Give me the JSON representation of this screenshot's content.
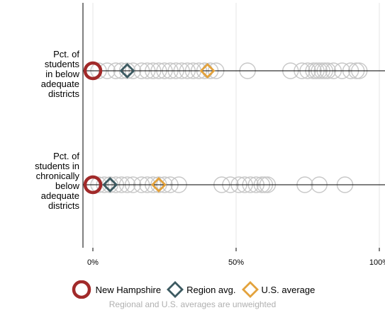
{
  "chart_data": {
    "type": "scatter",
    "title": "",
    "xlabel": "",
    "ylabel": "",
    "xlim": [
      0,
      100
    ],
    "x_ticks": [
      "0%",
      "50%",
      "100%"
    ],
    "x_tick_values": [
      0,
      50,
      100
    ],
    "grid": "vertical",
    "rows": [
      {
        "label_lines": [
          "Pct. of",
          "students",
          "in below",
          "adequate",
          "districts"
        ],
        "states": [
          2,
          5,
          8,
          10,
          12,
          14,
          17,
          19,
          21,
          23,
          25,
          27,
          29,
          31,
          33,
          35,
          37,
          39,
          41,
          43,
          54,
          69,
          73,
          75,
          77,
          78,
          79,
          80,
          81,
          82,
          84,
          87,
          90,
          92,
          93
        ],
        "highlight": 0,
        "region_avg": 12,
        "us_avg": 40
      },
      {
        "label_lines": [
          "Pct. of",
          "students in",
          "chronically",
          "below",
          "adequate",
          "districts"
        ],
        "states": [
          2,
          4,
          6,
          8,
          10,
          12,
          14,
          17,
          19,
          21,
          23,
          25,
          27,
          30,
          45,
          48,
          51,
          53,
          55,
          57,
          59,
          60,
          61,
          74,
          79,
          88
        ],
        "highlight": 0,
        "region_avg": 6,
        "us_avg": 23
      }
    ],
    "legend": [
      {
        "name": "New Hampshire",
        "marker": "circle",
        "color": "#a12a2a"
      },
      {
        "name": "Region avg.",
        "marker": "diamond",
        "color": "#3c5a61"
      },
      {
        "name": "U.S. average",
        "marker": "diamond",
        "color": "#e3a23c"
      }
    ],
    "note": "Regional and U.S. averages are unweighted",
    "colors": {
      "state_marker": "#c8c8c8",
      "highlight": "#a12a2a",
      "region": "#3c5a61",
      "us": "#e3a23c",
      "grid": "#e6e6e6",
      "axis": "#000000"
    }
  }
}
